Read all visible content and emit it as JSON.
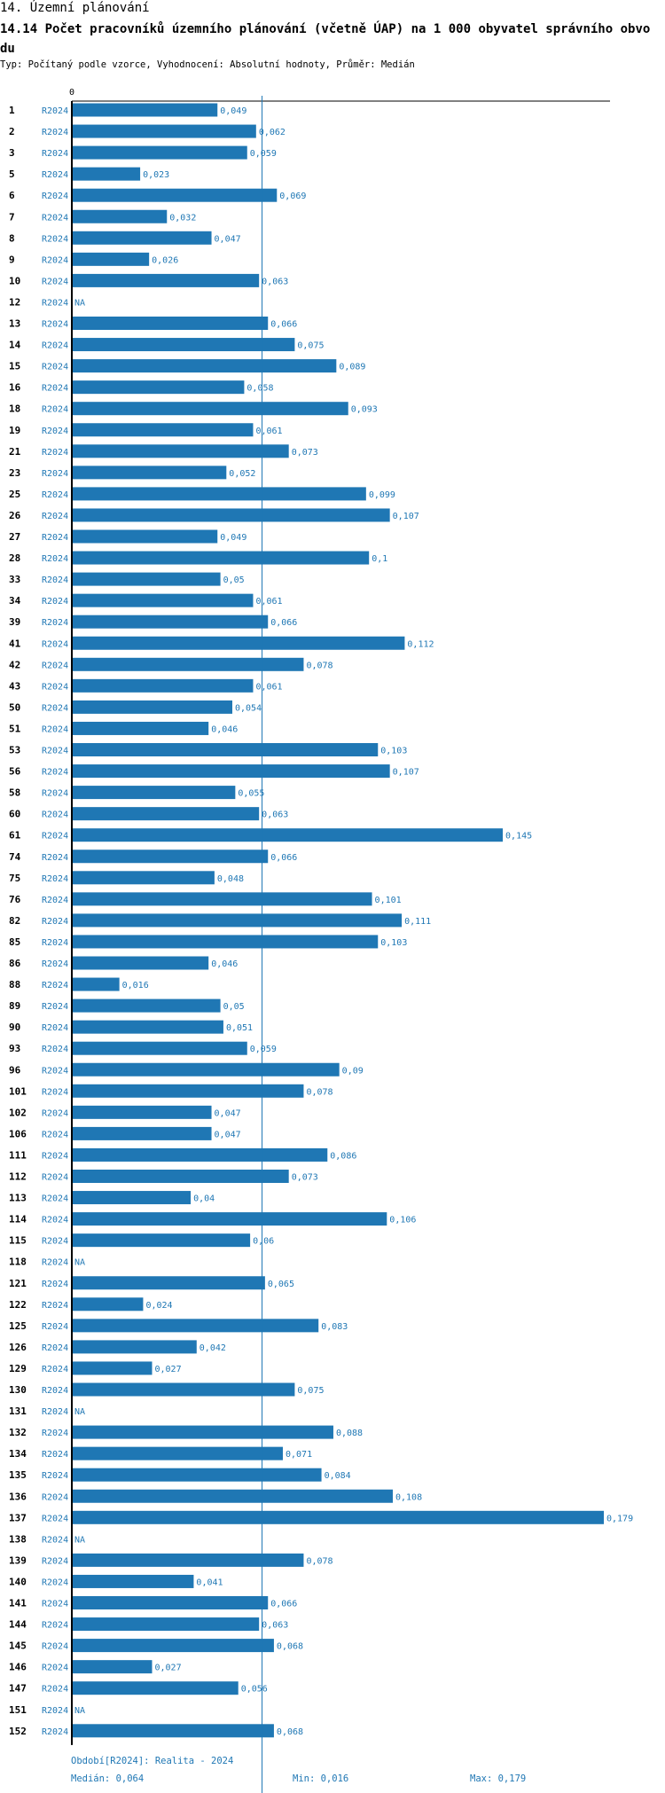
{
  "header": {
    "section": "14. Územní plánování",
    "title": "14.14 Počet pracovníků územního plánování (včetně ÚAP) na 1 000 obyvatel správního obvodu",
    "meta": "Typ: Počítaný podle vzorce, Vyhodnocení: Absolutní hodnoty, Průměr: Medián"
  },
  "colors": {
    "bar": "#1f77b4",
    "text": "#1f77b4",
    "axis": "#000000",
    "median_line": "#1f77b4"
  },
  "chart_data": {
    "type": "bar",
    "orientation": "horizontal",
    "axis_zero_label": "0",
    "xlim": [
      0,
      0.179
    ],
    "series_label": "R2024",
    "median": 0.064,
    "rows": [
      {
        "id": "1",
        "series": "R2024",
        "value": 0.049,
        "label": "0,049"
      },
      {
        "id": "2",
        "series": "R2024",
        "value": 0.062,
        "label": "0,062"
      },
      {
        "id": "3",
        "series": "R2024",
        "value": 0.059,
        "label": "0,059"
      },
      {
        "id": "5",
        "series": "R2024",
        "value": 0.023,
        "label": "0,023"
      },
      {
        "id": "6",
        "series": "R2024",
        "value": 0.069,
        "label": "0,069"
      },
      {
        "id": "7",
        "series": "R2024",
        "value": 0.032,
        "label": "0,032"
      },
      {
        "id": "8",
        "series": "R2024",
        "value": 0.047,
        "label": "0,047"
      },
      {
        "id": "9",
        "series": "R2024",
        "value": 0.026,
        "label": "0,026"
      },
      {
        "id": "10",
        "series": "R2024",
        "value": 0.063,
        "label": "0,063"
      },
      {
        "id": "12",
        "series": "R2024",
        "value": null,
        "label": "NA"
      },
      {
        "id": "13",
        "series": "R2024",
        "value": 0.066,
        "label": "0,066"
      },
      {
        "id": "14",
        "series": "R2024",
        "value": 0.075,
        "label": "0,075"
      },
      {
        "id": "15",
        "series": "R2024",
        "value": 0.089,
        "label": "0,089"
      },
      {
        "id": "16",
        "series": "R2024",
        "value": 0.058,
        "label": "0,058"
      },
      {
        "id": "18",
        "series": "R2024",
        "value": 0.093,
        "label": "0,093"
      },
      {
        "id": "19",
        "series": "R2024",
        "value": 0.061,
        "label": "0,061"
      },
      {
        "id": "21",
        "series": "R2024",
        "value": 0.073,
        "label": "0,073"
      },
      {
        "id": "23",
        "series": "R2024",
        "value": 0.052,
        "label": "0,052"
      },
      {
        "id": "25",
        "series": "R2024",
        "value": 0.099,
        "label": "0,099"
      },
      {
        "id": "26",
        "series": "R2024",
        "value": 0.107,
        "label": "0,107"
      },
      {
        "id": "27",
        "series": "R2024",
        "value": 0.049,
        "label": "0,049"
      },
      {
        "id": "28",
        "series": "R2024",
        "value": 0.1,
        "label": "0,1"
      },
      {
        "id": "33",
        "series": "R2024",
        "value": 0.05,
        "label": "0,05"
      },
      {
        "id": "34",
        "series": "R2024",
        "value": 0.061,
        "label": "0,061"
      },
      {
        "id": "39",
        "series": "R2024",
        "value": 0.066,
        "label": "0,066"
      },
      {
        "id": "41",
        "series": "R2024",
        "value": 0.112,
        "label": "0,112"
      },
      {
        "id": "42",
        "series": "R2024",
        "value": 0.078,
        "label": "0,078"
      },
      {
        "id": "43",
        "series": "R2024",
        "value": 0.061,
        "label": "0,061"
      },
      {
        "id": "50",
        "series": "R2024",
        "value": 0.054,
        "label": "0,054"
      },
      {
        "id": "51",
        "series": "R2024",
        "value": 0.046,
        "label": "0,046"
      },
      {
        "id": "53",
        "series": "R2024",
        "value": 0.103,
        "label": "0,103"
      },
      {
        "id": "56",
        "series": "R2024",
        "value": 0.107,
        "label": "0,107"
      },
      {
        "id": "58",
        "series": "R2024",
        "value": 0.055,
        "label": "0,055"
      },
      {
        "id": "60",
        "series": "R2024",
        "value": 0.063,
        "label": "0,063"
      },
      {
        "id": "61",
        "series": "R2024",
        "value": 0.145,
        "label": "0,145"
      },
      {
        "id": "74",
        "series": "R2024",
        "value": 0.066,
        "label": "0,066"
      },
      {
        "id": "75",
        "series": "R2024",
        "value": 0.048,
        "label": "0,048"
      },
      {
        "id": "76",
        "series": "R2024",
        "value": 0.101,
        "label": "0,101"
      },
      {
        "id": "82",
        "series": "R2024",
        "value": 0.111,
        "label": "0,111"
      },
      {
        "id": "85",
        "series": "R2024",
        "value": 0.103,
        "label": "0,103"
      },
      {
        "id": "86",
        "series": "R2024",
        "value": 0.046,
        "label": "0,046"
      },
      {
        "id": "88",
        "series": "R2024",
        "value": 0.016,
        "label": "0,016"
      },
      {
        "id": "89",
        "series": "R2024",
        "value": 0.05,
        "label": "0,05"
      },
      {
        "id": "90",
        "series": "R2024",
        "value": 0.051,
        "label": "0,051"
      },
      {
        "id": "93",
        "series": "R2024",
        "value": 0.059,
        "label": "0,059"
      },
      {
        "id": "96",
        "series": "R2024",
        "value": 0.09,
        "label": "0,09"
      },
      {
        "id": "101",
        "series": "R2024",
        "value": 0.078,
        "label": "0,078"
      },
      {
        "id": "102",
        "series": "R2024",
        "value": 0.047,
        "label": "0,047"
      },
      {
        "id": "106",
        "series": "R2024",
        "value": 0.047,
        "label": "0,047"
      },
      {
        "id": "111",
        "series": "R2024",
        "value": 0.086,
        "label": "0,086"
      },
      {
        "id": "112",
        "series": "R2024",
        "value": 0.073,
        "label": "0,073"
      },
      {
        "id": "113",
        "series": "R2024",
        "value": 0.04,
        "label": "0,04"
      },
      {
        "id": "114",
        "series": "R2024",
        "value": 0.106,
        "label": "0,106"
      },
      {
        "id": "115",
        "series": "R2024",
        "value": 0.06,
        "label": "0,06"
      },
      {
        "id": "118",
        "series": "R2024",
        "value": null,
        "label": "NA"
      },
      {
        "id": "121",
        "series": "R2024",
        "value": 0.065,
        "label": "0,065"
      },
      {
        "id": "122",
        "series": "R2024",
        "value": 0.024,
        "label": "0,024"
      },
      {
        "id": "125",
        "series": "R2024",
        "value": 0.083,
        "label": "0,083"
      },
      {
        "id": "126",
        "series": "R2024",
        "value": 0.042,
        "label": "0,042"
      },
      {
        "id": "129",
        "series": "R2024",
        "value": 0.027,
        "label": "0,027"
      },
      {
        "id": "130",
        "series": "R2024",
        "value": 0.075,
        "label": "0,075"
      },
      {
        "id": "131",
        "series": "R2024",
        "value": null,
        "label": "NA"
      },
      {
        "id": "132",
        "series": "R2024",
        "value": 0.088,
        "label": "0,088"
      },
      {
        "id": "134",
        "series": "R2024",
        "value": 0.071,
        "label": "0,071"
      },
      {
        "id": "135",
        "series": "R2024",
        "value": 0.084,
        "label": "0,084"
      },
      {
        "id": "136",
        "series": "R2024",
        "value": 0.108,
        "label": "0,108"
      },
      {
        "id": "137",
        "series": "R2024",
        "value": 0.179,
        "label": "0,179"
      },
      {
        "id": "138",
        "series": "R2024",
        "value": null,
        "label": "NA"
      },
      {
        "id": "139",
        "series": "R2024",
        "value": 0.078,
        "label": "0,078"
      },
      {
        "id": "140",
        "series": "R2024",
        "value": 0.041,
        "label": "0,041"
      },
      {
        "id": "141",
        "series": "R2024",
        "value": 0.066,
        "label": "0,066"
      },
      {
        "id": "144",
        "series": "R2024",
        "value": 0.063,
        "label": "0,063"
      },
      {
        "id": "145",
        "series": "R2024",
        "value": 0.068,
        "label": "0,068"
      },
      {
        "id": "146",
        "series": "R2024",
        "value": 0.027,
        "label": "0,027"
      },
      {
        "id": "147",
        "series": "R2024",
        "value": 0.056,
        "label": "0,056"
      },
      {
        "id": "151",
        "series": "R2024",
        "value": null,
        "label": "NA"
      },
      {
        "id": "152",
        "series": "R2024",
        "value": 0.068,
        "label": "0,068"
      }
    ]
  },
  "footer": {
    "period": "Období[R2024]: Realita - 2024",
    "median": "Medián: 0,064",
    "min": "Min: 0,016",
    "max": "Max: 0,179"
  }
}
